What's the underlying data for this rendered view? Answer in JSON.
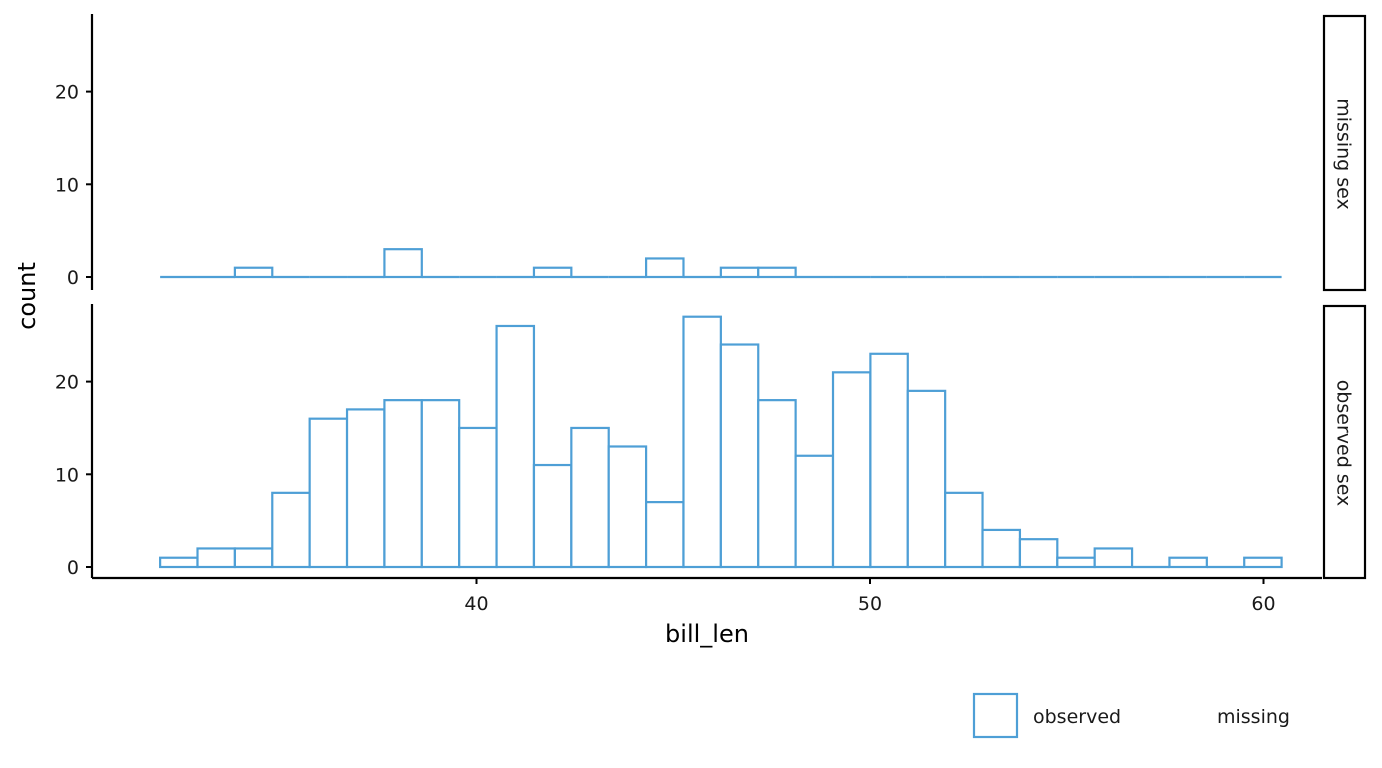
{
  "chart_data": {
    "type": "bar",
    "subtype": "histogram",
    "xlabel": "bill_len",
    "ylabel": "count",
    "x_ticks": [
      40,
      50,
      60
    ],
    "bin_width": 0.95,
    "bin_starts": [
      31.96,
      32.91,
      33.86,
      34.81,
      35.76,
      36.71,
      37.66,
      38.61,
      39.56,
      40.51,
      41.46,
      42.41,
      43.36,
      44.31,
      45.26,
      46.21,
      47.16,
      48.11,
      49.06,
      50.01,
      50.96,
      51.91,
      52.86,
      53.81,
      54.76,
      55.71,
      56.66,
      57.61,
      58.56,
      59.51
    ],
    "panels": [
      {
        "strip_label": "missing sex",
        "ylim": [
          -1,
          28
        ],
        "y_ticks": [
          0,
          10,
          20
        ],
        "values": [
          0,
          0,
          1,
          0,
          0,
          0,
          3,
          0,
          0,
          0,
          1,
          0,
          0,
          2,
          0,
          1,
          1,
          0,
          0,
          0,
          0,
          0,
          0,
          0,
          0,
          0,
          0,
          0,
          0,
          0
        ]
      },
      {
        "strip_label": "observed sex",
        "ylim": [
          -1,
          28
        ],
        "y_ticks": [
          0,
          10,
          20
        ],
        "values": [
          1,
          2,
          2,
          8,
          16,
          17,
          18,
          18,
          15,
          26,
          11,
          15,
          13,
          7,
          27,
          24,
          18,
          12,
          21,
          23,
          19,
          8,
          4,
          3,
          1,
          2,
          0,
          1,
          0,
          1
        ]
      }
    ],
    "legend": {
      "position": "bottom-right",
      "items": [
        {
          "label": "observed",
          "color": "#4e9fd6"
        },
        {
          "label": "missing",
          "color": "#ffffff"
        }
      ]
    },
    "bar_outline_color": "#4e9fd6",
    "grid": false
  }
}
